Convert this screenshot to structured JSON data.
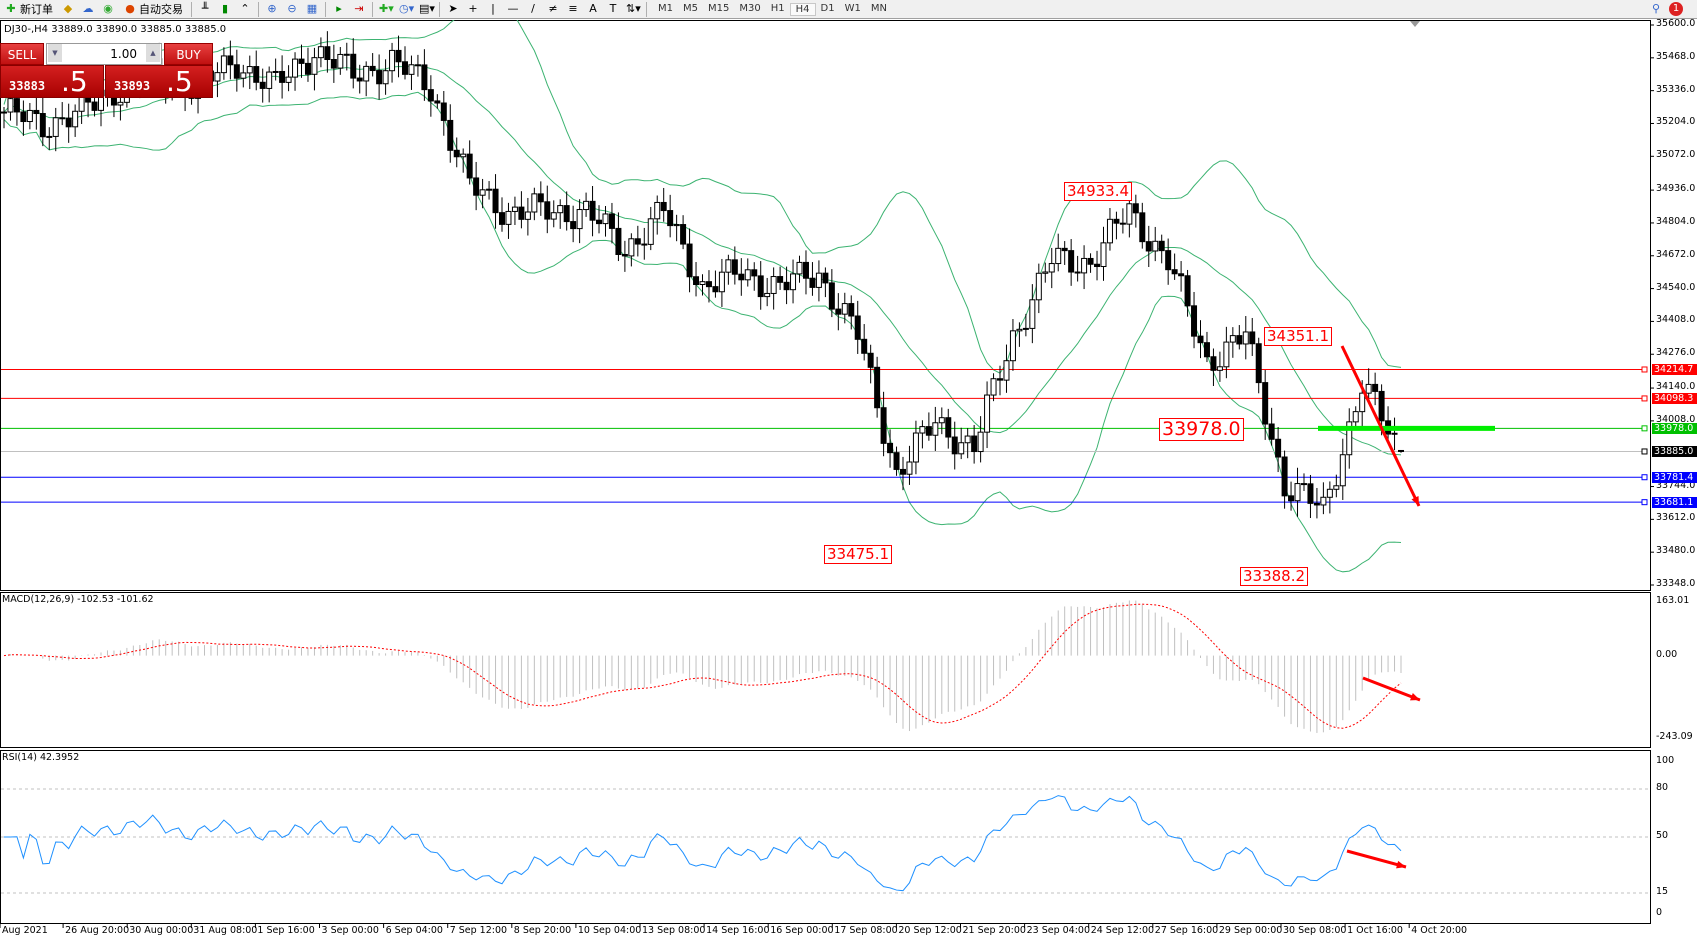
{
  "toolbar": {
    "new_order_label": "新订单",
    "auto_trading_label": "自动交易",
    "timeframes": [
      "M1",
      "M5",
      "M15",
      "M30",
      "H1",
      "H4",
      "D1",
      "W1",
      "MN"
    ],
    "active_timeframe": "H4",
    "notification_count": "1"
  },
  "chart": {
    "title": "DJ30-,H4  33889.0 33890.0 33885.0 33885.0",
    "price_axis": [
      "35600.0",
      "35468.0",
      "35336.0",
      "35204.0",
      "35072.0",
      "34936.0",
      "34804.0",
      "34672.0",
      "34540.0",
      "34408.0",
      "34276.0",
      "34140.0",
      "34008.0",
      "33744.0",
      "33612.0",
      "33480.0",
      "33348.0"
    ],
    "price_range": [
      33348,
      35600
    ],
    "daily_close_path": [
      35250,
      35200,
      35250,
      35350,
      35400,
      35350,
      35450,
      35350,
      35500,
      35400,
      35450,
      35350,
      34950,
      34850,
      34850,
      34850,
      34700,
      34850,
      34550,
      34600,
      34550,
      34600,
      34350,
      33800,
      34000,
      33900,
      34350,
      34650,
      34650,
      34850,
      34650,
      34250,
      34350,
      33750,
      33650,
      34150,
      33885
    ],
    "levels": [
      {
        "value": "34214.7",
        "color": "#ff0000"
      },
      {
        "value": "34098.3",
        "color": "#ff0000"
      },
      {
        "value": "33978.0",
        "color": "#00c000"
      },
      {
        "value": "33885.0",
        "color": "#000000",
        "line": "#c0c0c0"
      },
      {
        "value": "33781.4",
        "color": "#0000ff"
      },
      {
        "value": "33681.1",
        "color": "#0000ff"
      }
    ],
    "annotations": [
      "34933.4",
      "33475.1",
      "34351.1",
      "33978.0",
      "33388.2"
    ],
    "colors": {
      "bollinger": "#3cb371",
      "bull": "#ffffff",
      "bear": "#000000",
      "arrow": "#ff0000",
      "support": "#00ee00"
    }
  },
  "trade_panel": {
    "sell_label": "SELL",
    "buy_label": "BUY",
    "lot": "1.00",
    "bid_small": "33883",
    "bid_big": ".5",
    "ask_small": "33893",
    "ask_big": ".5"
  },
  "macd": {
    "label": "MACD(12,26,9) -102.53 -101.62",
    "axis": [
      "163.01",
      "0.00",
      "-243.09"
    ],
    "range": [
      -243.09,
      163.01
    ]
  },
  "rsi": {
    "label": "RSI(14) 42.3952",
    "axis": [
      "100",
      "80",
      "50",
      "15",
      "0"
    ],
    "line_color": "#1e90ff"
  },
  "time_axis": [
    "Aug 2021",
    "26 Aug 20:00",
    "30 Aug 00:00",
    "31 Aug 08:00",
    "1 Sep 16:00",
    "3 Sep 00:00",
    "6 Sep 04:00",
    "7 Sep 12:00",
    "8 Sep 20:00",
    "10 Sep 04:00",
    "13 Sep 08:00",
    "14 Sep 16:00",
    "16 Sep 00:00",
    "17 Sep 08:00",
    "20 Sep 12:00",
    "21 Sep 20:00",
    "23 Sep 04:00",
    "24 Sep 12:00",
    "27 Sep 16:00",
    "29 Sep 00:00",
    "30 Sep 08:00",
    "1 Oct 16:00",
    "4 Oct 20:00"
  ]
}
